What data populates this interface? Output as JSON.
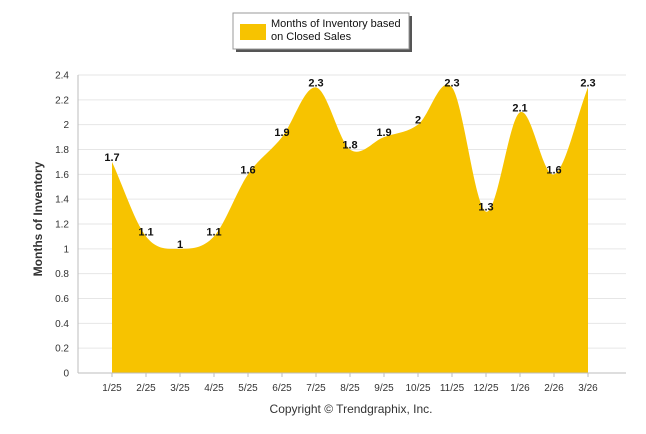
{
  "chart_data": {
    "type": "area",
    "categories": [
      "1/25",
      "2/25",
      "3/25",
      "4/25",
      "5/25",
      "6/25",
      "7/25",
      "8/25",
      "9/25",
      "10/25",
      "11/25",
      "12/25",
      "1/26",
      "2/26",
      "3/26"
    ],
    "series": [
      {
        "name": "Months of Inventory based on Closed Sales",
        "values": [
          1.7,
          1.1,
          1.0,
          1.1,
          1.6,
          1.9,
          2.3,
          1.8,
          1.9,
          2.0,
          2.3,
          1.3,
          2.1,
          1.6,
          2.3
        ],
        "labels": [
          "1.7",
          "1.1",
          "1",
          "1.1",
          "1.6",
          "1.9",
          "2.3",
          "1.8",
          "1.9",
          "2",
          "2.3",
          "1.3",
          "2.1",
          "1.6",
          "2.3"
        ],
        "color": "#F7C300"
      }
    ],
    "ylabel": "Months of Inventory",
    "xlabel": "",
    "ylim": [
      0,
      2.4
    ],
    "yticks": [
      "0",
      "0.2",
      "0.4",
      "0.6",
      "0.8",
      "1",
      "1.2",
      "1.4",
      "1.6",
      "1.8",
      "2",
      "2.2",
      "2.4"
    ],
    "grid": true,
    "legend": {
      "position": "top-center",
      "label_line1": "Months of Inventory based",
      "label_line2": "on Closed Sales"
    },
    "credit": "Copyright © Trendgraphix, Inc.",
    "colors": {
      "area": "#F7C300",
      "grid": "#e6e6e6",
      "axis": "#bdbdbd"
    }
  }
}
